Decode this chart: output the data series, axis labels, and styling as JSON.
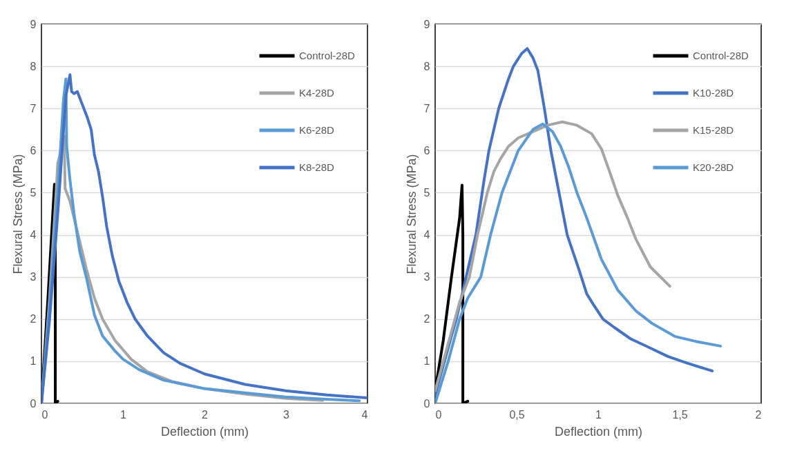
{
  "chart_data": [
    {
      "type": "line",
      "xlabel": "Deflection (mm)",
      "ylabel": "Flexural Stress (MPa)",
      "xlim": [
        0,
        4
      ],
      "xticks": [
        0,
        1,
        2,
        3,
        4
      ],
      "ylim": [
        0,
        9
      ],
      "yticks": [
        0,
        1,
        2,
        3,
        4,
        5,
        6,
        7,
        8,
        9
      ],
      "grid": "y",
      "legend": "top right",
      "series": [
        {
          "name": "Control-28D",
          "color": "#000000",
          "x": [
            0,
            0.08,
            0.16,
            0.17,
            0.17,
            0.2
          ],
          "values": [
            0,
            2.5,
            5.2,
            4.0,
            0,
            0.05
          ]
        },
        {
          "name": "K4-28D",
          "color": "#a5a5a5",
          "x": [
            0,
            0.1,
            0.18,
            0.2,
            0.24,
            0.28,
            0.29,
            0.35,
            0.45,
            0.55,
            0.65,
            0.75,
            0.9,
            1.1,
            1.3,
            1.6,
            2.0,
            2.5,
            3.0,
            3.45
          ],
          "values": [
            0,
            2.5,
            5,
            5.7,
            6.0,
            6.35,
            5.1,
            4.8,
            4.0,
            3.2,
            2.5,
            2.0,
            1.5,
            1.05,
            0.75,
            0.52,
            0.35,
            0.22,
            0.12,
            0.07
          ]
        },
        {
          "name": "K6-28D",
          "color": "#5b9bd5",
          "x": [
            0,
            0.1,
            0.2,
            0.27,
            0.3,
            0.31,
            0.35,
            0.4,
            0.47,
            0.55,
            0.65,
            0.75,
            0.9,
            1.0,
            1.2,
            1.5,
            2.0,
            2.5,
            3.0,
            3.5,
            3.9
          ],
          "values": [
            0,
            2.3,
            5,
            7.2,
            7.7,
            6.1,
            5.3,
            4.5,
            3.6,
            3.0,
            2.1,
            1.6,
            1.25,
            1.05,
            0.8,
            0.55,
            0.35,
            0.25,
            0.15,
            0.1,
            0.06
          ]
        },
        {
          "name": "K8-28D",
          "color": "#4472c4",
          "x": [
            0,
            0.1,
            0.2,
            0.3,
            0.35,
            0.37,
            0.4,
            0.44,
            0.5,
            0.56,
            0.61,
            0.65,
            0.7,
            0.75,
            0.8,
            0.87,
            0.95,
            1.05,
            1.15,
            1.3,
            1.5,
            1.7,
            2.0,
            2.5,
            3.0,
            3.5,
            4.0
          ],
          "values": [
            0,
            2,
            4.5,
            7.3,
            7.8,
            7.4,
            7.35,
            7.4,
            7.1,
            6.8,
            6.5,
            5.9,
            5.5,
            4.9,
            4.2,
            3.5,
            2.9,
            2.4,
            2.0,
            1.6,
            1.2,
            0.95,
            0.7,
            0.45,
            0.3,
            0.2,
            0.13
          ]
        }
      ]
    },
    {
      "type": "line",
      "xlabel": "Deflection (mm)",
      "ylabel": "Flexural Stress (MPa)",
      "xlim": [
        0,
        2
      ],
      "xticks": [
        0,
        {
          "value": 0.5,
          "label": "0,5"
        },
        1,
        {
          "value": 1.5,
          "label": "1,5"
        },
        2
      ],
      "ylim": [
        0,
        9
      ],
      "yticks": [
        0,
        1,
        2,
        3,
        4,
        5,
        6,
        7,
        8,
        9
      ],
      "grid": "y",
      "legend": "top right",
      "series": [
        {
          "name": "Control-28D",
          "color": "#000000",
          "x": [
            0,
            0.05,
            0.1,
            0.15,
            0.165,
            0.17,
            0.17,
            0.2
          ],
          "values": [
            0.3,
            1.5,
            3.0,
            4.4,
            5.18,
            4.0,
            0,
            0.05
          ]
        },
        {
          "name": "K10-28D",
          "color": "#4472c4",
          "x": [
            0,
            0.05,
            0.1,
            0.13,
            0.19,
            0.25,
            0.3,
            0.33,
            0.39,
            0.45,
            0.48,
            0.53,
            0.565,
            0.6,
            0.63,
            0.67,
            0.71,
            0.76,
            0.81,
            0.88,
            0.93,
            0.97,
            1.03,
            1.1,
            1.2,
            1.3,
            1.43,
            1.55,
            1.7
          ],
          "values": [
            0.2,
            0.9,
            1.6,
            2.0,
            3.0,
            4.0,
            5.3,
            6.0,
            7.0,
            7.7,
            8.0,
            8.3,
            8.42,
            8.2,
            7.9,
            7.0,
            6.0,
            5.0,
            4.0,
            3.2,
            2.6,
            2.35,
            2.0,
            1.8,
            1.53,
            1.35,
            1.11,
            0.95,
            0.77
          ]
        },
        {
          "name": "K15-28D",
          "color": "#a5a5a5",
          "x": [
            0,
            0.05,
            0.1,
            0.15,
            0.21,
            0.26,
            0.32,
            0.36,
            0.4,
            0.45,
            0.51,
            0.6,
            0.69,
            0.78,
            0.87,
            0.96,
            1.02,
            1.07,
            1.12,
            1.18,
            1.23,
            1.32,
            1.44
          ],
          "values": [
            0.3,
            1.0,
            1.7,
            2.4,
            3.0,
            4.0,
            5.0,
            5.5,
            5.8,
            6.1,
            6.3,
            6.45,
            6.6,
            6.68,
            6.6,
            6.4,
            6.04,
            5.5,
            4.94,
            4.4,
            3.91,
            3.24,
            2.78
          ]
        },
        {
          "name": "K20-28D",
          "color": "#5b9bd5",
          "x": [
            0,
            0.04,
            0.08,
            0.15,
            0.2,
            0.28,
            0.34,
            0.41,
            0.51,
            0.6,
            0.66,
            0.72,
            0.77,
            0.82,
            0.87,
            0.93,
            1.02,
            1.12,
            1.23,
            1.33,
            1.47,
            1.6,
            1.75
          ],
          "values": [
            0,
            0.5,
            1.0,
            2.0,
            2.5,
            3.0,
            4.0,
            5.0,
            6.0,
            6.5,
            6.63,
            6.45,
            6.1,
            5.6,
            5.0,
            4.4,
            3.42,
            2.69,
            2.2,
            1.9,
            1.59,
            1.47,
            1.36
          ]
        }
      ]
    }
  ]
}
